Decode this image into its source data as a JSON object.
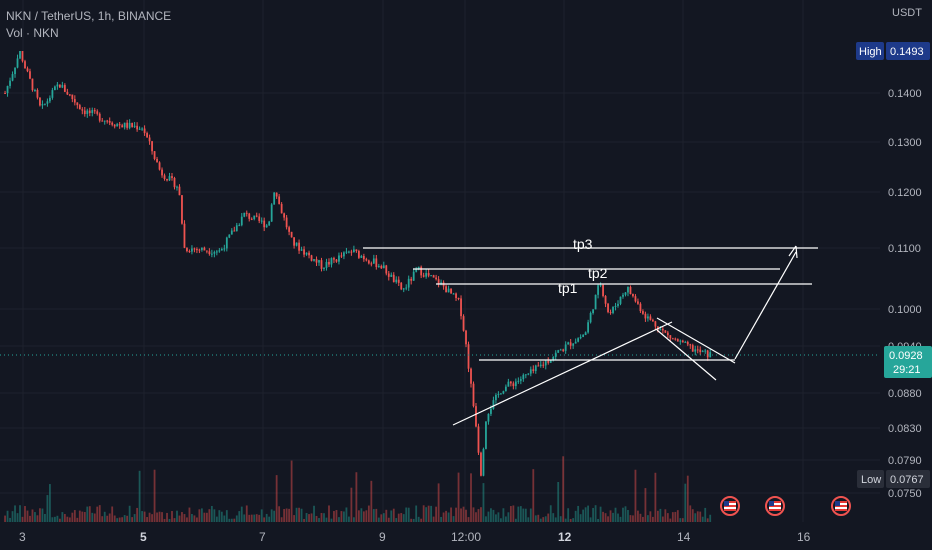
{
  "header": {
    "symbol_line": "NKN / TetherUS, 1h, BINANCE",
    "volume_line": "Vol · NKN"
  },
  "price_axis": {
    "currency": "USDT",
    "ticks": [
      "0.1400",
      "0.1300",
      "0.1200",
      "0.1100",
      "0.1000",
      "0.0940",
      "0.0880",
      "0.0830",
      "0.0790",
      "0.0750"
    ],
    "high_label": "High",
    "high_value": "0.1493",
    "low_label": "Low",
    "low_value": "0.0767",
    "last_price": "0.0928",
    "countdown": "29:21"
  },
  "time_axis": {
    "labels": [
      "3",
      "5",
      "7",
      "9",
      "12:00",
      "12",
      "14",
      "16"
    ]
  },
  "drawings": {
    "targets": [
      "tp1",
      "tp2",
      "tp3"
    ]
  },
  "colors": {
    "background": "#131722",
    "up": "#26a69a",
    "down": "#ef5350",
    "grid": "#1e222d",
    "last_price": "#26a69a",
    "high_low_badge": "#2a2e39",
    "high_badge": "#1e3a8a",
    "annotation": "#ffffff"
  },
  "chart_data": {
    "type": "candlestick",
    "symbol": "NKN / TetherUS",
    "interval": "1h",
    "exchange": "BINANCE",
    "y_axis_unit": "USDT",
    "ylim": [
      0.0725,
      0.152
    ],
    "x_tick_labels": [
      "3",
      "5",
      "7",
      "9",
      "12:00",
      "12",
      "14",
      "16"
    ],
    "high": 0.1493,
    "low": 0.0767,
    "last": 0.0928,
    "price_path_anchors": [
      {
        "x": "3",
        "close": 0.143
      },
      {
        "x": "4",
        "close": 0.136
      },
      {
        "x": "5",
        "close": 0.133
      },
      {
        "x": "6",
        "close": 0.11
      },
      {
        "x": "7",
        "close": 0.116
      },
      {
        "x": "8",
        "close": 0.109
      },
      {
        "x": "9",
        "close": 0.107
      },
      {
        "x": "10",
        "close": 0.103
      },
      {
        "x": "11",
        "close": 0.089
      },
      {
        "x": "12",
        "close": 0.0935
      },
      {
        "x": "13",
        "close": 0.1
      },
      {
        "x": "14",
        "close": 0.0928
      }
    ],
    "annotations": [
      {
        "label": "tp1",
        "price": 0.1035
      },
      {
        "label": "tp2",
        "price": 0.1058
      },
      {
        "label": "tp3",
        "price": 0.11
      }
    ],
    "grid": true
  }
}
